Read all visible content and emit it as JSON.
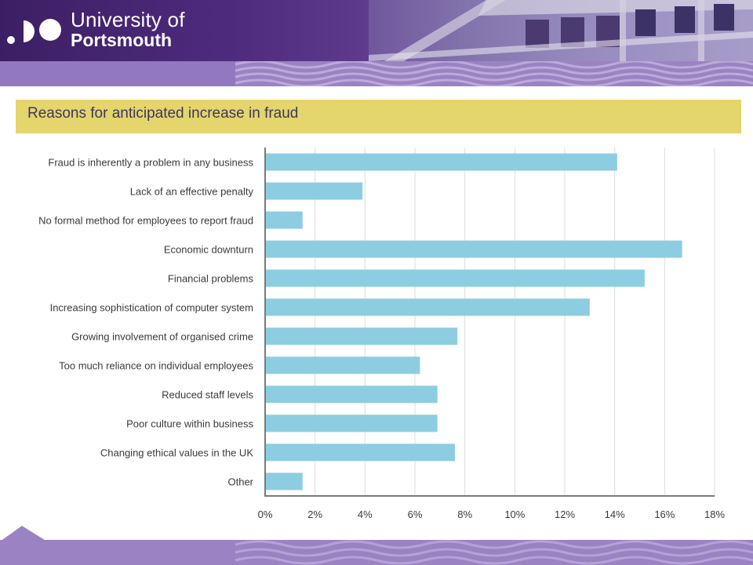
{
  "header": {
    "brand_line1": "University of",
    "brand_line2": "Portsmouth"
  },
  "colors": {
    "title_bar": "#e4d56c",
    "bar": "#8ccde2",
    "band": "#9b83c3"
  },
  "chart_data": {
    "type": "bar",
    "orientation": "horizontal",
    "title": "Reasons for anticipated increase in fraud",
    "categories": [
      "Fraud is inherently a problem in any business",
      "Lack of an effective penalty",
      "No formal method for employees to report fraud",
      "Economic downturn",
      "Financial problems",
      "Increasing sophistication of computer system",
      "Growing involvement of organised crime",
      "Too much reliance on individual employees",
      "Reduced staff levels",
      "Poor culture within business",
      "Changing ethical values in the UK",
      "Other"
    ],
    "values": [
      14.1,
      3.9,
      1.5,
      16.7,
      15.2,
      13.0,
      7.7,
      6.2,
      6.9,
      6.9,
      7.6,
      1.5
    ],
    "xlim": [
      0,
      18
    ],
    "xticks": [
      0,
      2,
      4,
      6,
      8,
      10,
      12,
      14,
      16,
      18
    ],
    "xtick_labels": [
      "0%",
      "2%",
      "4%",
      "6%",
      "8%",
      "10%",
      "12%",
      "14%",
      "16%",
      "18%"
    ],
    "xlabel": "",
    "ylabel": "",
    "grid": true
  }
}
